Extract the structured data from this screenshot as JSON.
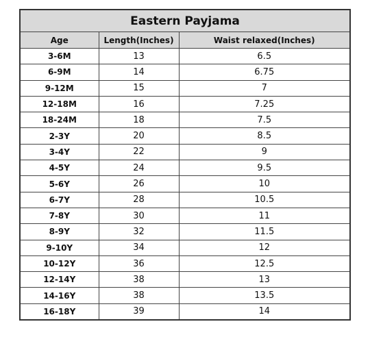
{
  "table": {
    "title": "Eastern Payjama",
    "header": [
      "Age",
      "Length(Inches)",
      "Waist relaxed(Inches)"
    ],
    "rows": [
      [
        "3-6M",
        "13",
        "6.5"
      ],
      [
        "6-9M",
        "14",
        "6.75"
      ],
      [
        "9-12M",
        "15",
        "7"
      ],
      [
        "12-18M",
        "16",
        "7.25"
      ],
      [
        "18-24M",
        "18",
        "7.5"
      ],
      [
        "2-3Y",
        "20",
        "8.5"
      ],
      [
        "3-4Y",
        "22",
        "9"
      ],
      [
        "4-5Y",
        "24",
        "9.5"
      ],
      [
        "5-6Y",
        "26",
        "10"
      ],
      [
        "6-7Y",
        "28",
        "10.5"
      ],
      [
        "7-8Y",
        "30",
        "11"
      ],
      [
        "8-9Y",
        "32",
        "11.5"
      ],
      [
        "9-10Y",
        "34",
        "12"
      ],
      [
        "10-12Y",
        "36",
        "12.5"
      ],
      [
        "12-14Y",
        "38",
        "13"
      ],
      [
        "14-16Y",
        "38",
        "13.5"
      ],
      [
        "16-18Y",
        "39",
        "14"
      ]
    ]
  }
}
